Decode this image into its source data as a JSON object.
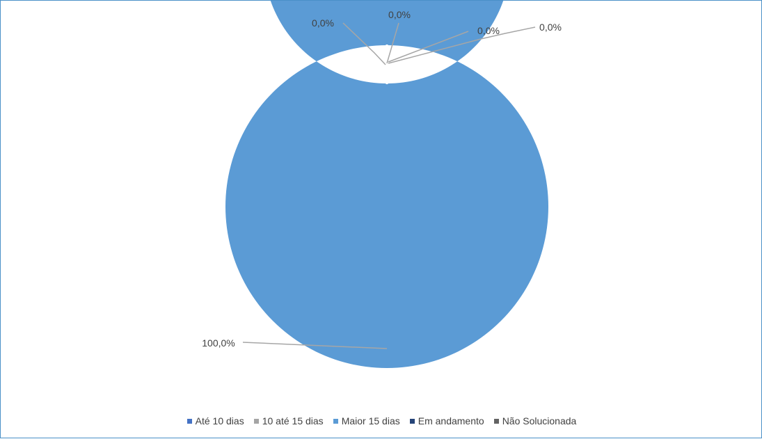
{
  "chart_data": {
    "type": "pie",
    "subtype": "doughnut",
    "title": "",
    "categories": [
      "Até 10 dias",
      "10 até 15 dias",
      "Maior 15 dias",
      "Em andamento",
      "Não Solucionada"
    ],
    "values": [
      0.0,
      0.0,
      100.0,
      0.0,
      0.0
    ],
    "data_labels": [
      "0,0%",
      "0,0%",
      "100,0%",
      "0,0%",
      "0,0%"
    ],
    "colors": [
      "#4472c4",
      "#a5a5a5",
      "#5b9bd5",
      "#264478",
      "#636363"
    ],
    "legend_position": "bottom"
  }
}
